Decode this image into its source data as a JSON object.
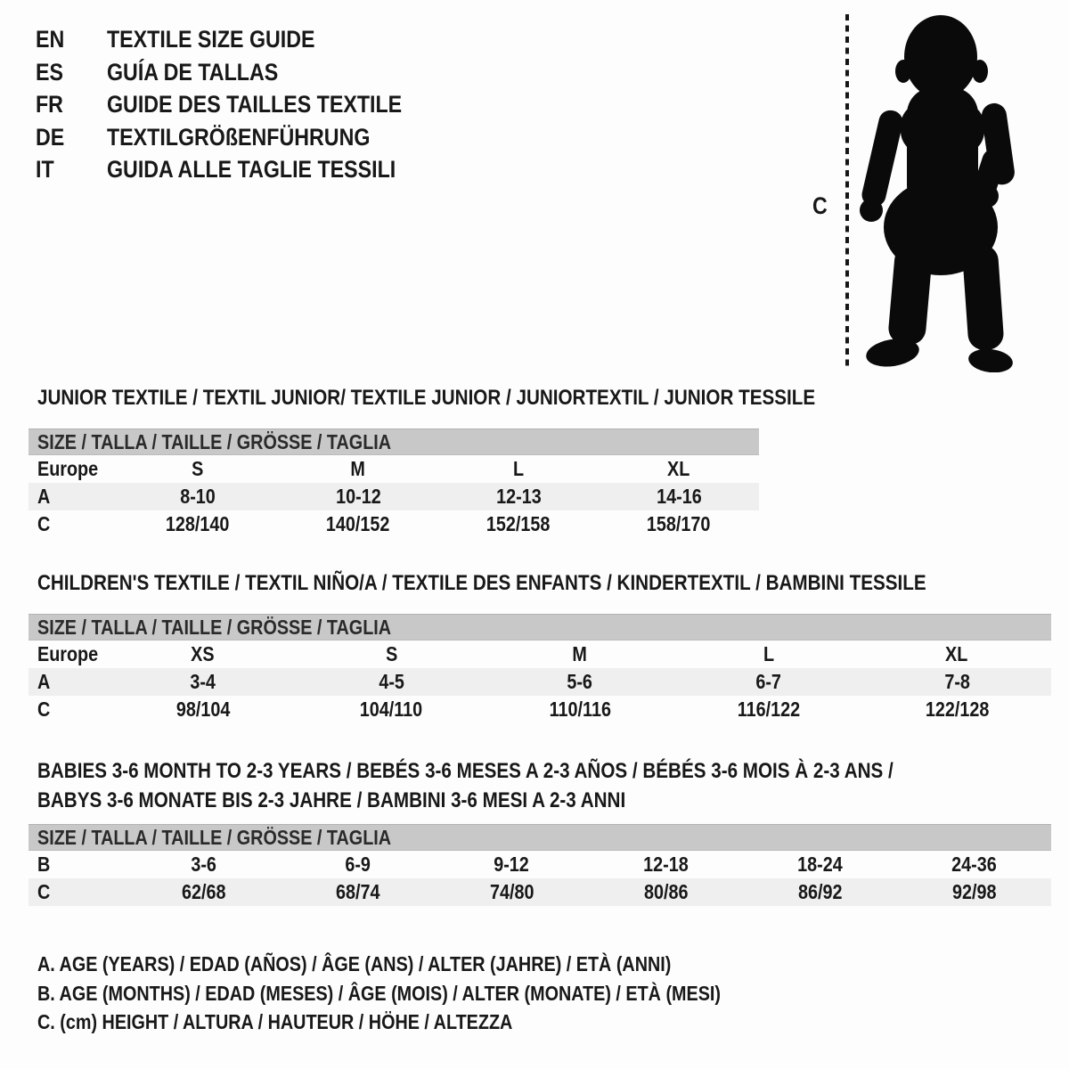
{
  "colors": {
    "background": "#fdfdfd",
    "text": "#181818",
    "header_band": "#c8c8c8",
    "shaded_row": "#efefef",
    "silhouette": "#0a0a0a"
  },
  "languages": {
    "items": [
      {
        "code": "EN",
        "title": "TEXTILE SIZE GUIDE"
      },
      {
        "code": "ES",
        "title": "GUÍA DE TALLAS"
      },
      {
        "code": "FR",
        "title": "GUIDE DES TAILLES TEXTILE"
      },
      {
        "code": "DE",
        "title": "TEXTILGRÖßENFÜHRUNG"
      },
      {
        "code": "IT",
        "title": "GUIDA ALLE TAGLIE TESSILI"
      }
    ]
  },
  "figure": {
    "height_label": "C"
  },
  "sections": {
    "junior": {
      "title": "JUNIOR TEXTILE / TEXTIL JUNIOR/ TEXTILE JUNIOR / JUNIORTEXTIL / JUNIOR TESSILE",
      "size_header": "SIZE / TALLA / TAILLE / GRÖSSE / TAGLIA",
      "rows": [
        {
          "label": "Europe",
          "values": [
            "S",
            "M",
            "L",
            "XL"
          ],
          "shade": false
        },
        {
          "label": "A",
          "values": [
            "8-10",
            "10-12",
            "12-13",
            "14-16"
          ],
          "shade": true
        },
        {
          "label": "C",
          "values": [
            "128/140",
            "140/152",
            "152/158",
            "158/170"
          ],
          "shade": false
        }
      ]
    },
    "children": {
      "title": "CHILDREN'S TEXTILE / TEXTIL NIÑO/A / TEXTILE DES ENFANTS / KINDERTEXTIL / BAMBINI TESSILE",
      "size_header": "SIZE / TALLA / TAILLE / GRÖSSE / TAGLIA",
      "rows": [
        {
          "label": "Europe",
          "values": [
            "XS",
            "S",
            "M",
            "L",
            "XL"
          ],
          "shade": false
        },
        {
          "label": "A",
          "values": [
            "3-4",
            "4-5",
            "5-6",
            "6-7",
            "7-8"
          ],
          "shade": true
        },
        {
          "label": "C",
          "values": [
            "98/104",
            "104/110",
            "110/116",
            "116/122",
            "122/128"
          ],
          "shade": false
        }
      ]
    },
    "babies": {
      "title_line1": "BABIES 3-6 MONTH TO 2-3 YEARS / BEBÉS 3-6 MESES A 2-3 AÑOS / BÉBÉS 3-6 MOIS À 2-3 ANS /",
      "title_line2": "BABYS 3-6 MONATE BIS 2-3 JAHRE / BAMBINI 3-6 MESI A 2-3 ANNI",
      "size_header": "SIZE / TALLA / TAILLE / GRÖSSE / TAGLIA",
      "rows": [
        {
          "label": "B",
          "values": [
            "3-6",
            "6-9",
            "9-12",
            "12-18",
            "18-24",
            "24-36"
          ],
          "shade": false
        },
        {
          "label": "C",
          "values": [
            "62/68",
            "68/74",
            "74/80",
            "80/86",
            "86/92",
            "92/98"
          ],
          "shade": true
        }
      ]
    }
  },
  "legend": {
    "lines": [
      "A. AGE (YEARS) / EDAD (AÑOS) / ÂGE (ANS) / ALTER (JAHRE) / ETÀ (ANNI)",
      "B. AGE (MONTHS) / EDAD (MESES) / ÂGE (MOIS) / ALTER (MONATE) / ETÀ (MESI)",
      "C. (cm) HEIGHT / ALTURA / HAUTEUR / HÖHE / ALTEZZA"
    ]
  }
}
